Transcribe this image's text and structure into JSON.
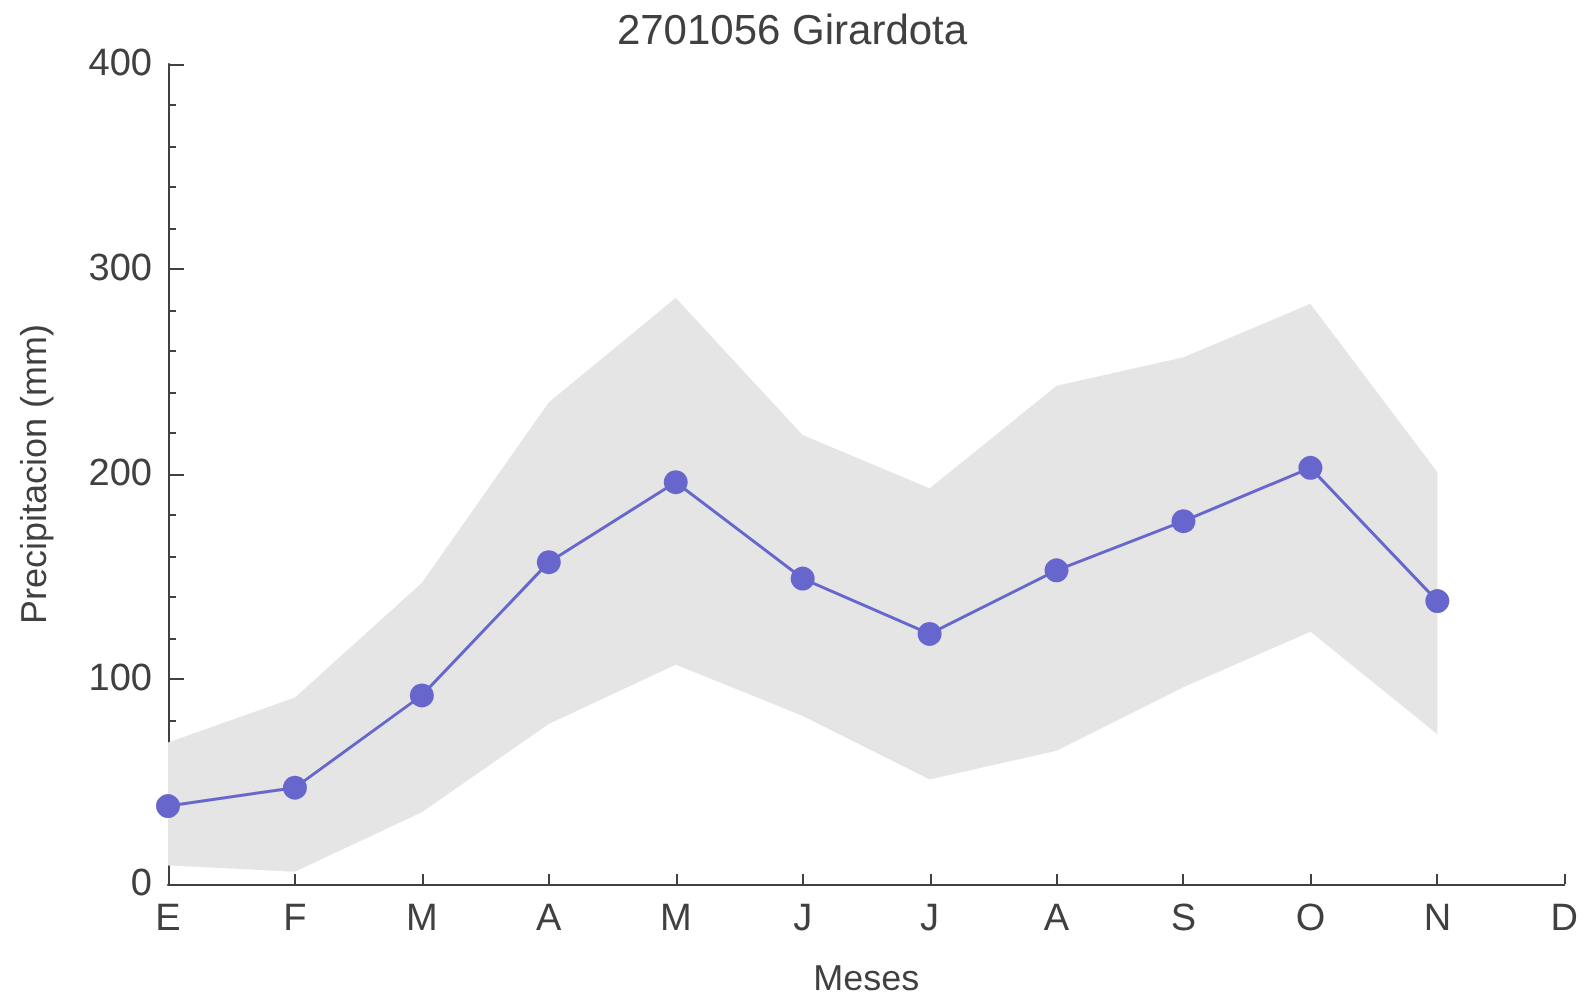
{
  "chart_data": {
    "type": "line",
    "title": "2701056 Girardota",
    "xlabel": "Meses",
    "ylabel": "Precipitacion (mm)",
    "categories": [
      "E",
      "F",
      "M",
      "A",
      "M",
      "J",
      "J",
      "A",
      "S",
      "O",
      "N",
      "D"
    ],
    "series": [
      {
        "color": "#6666cc",
        "values": [
          38,
          47,
          92,
          157,
          196,
          149,
          122,
          153,
          177,
          203,
          138,
          null
        ],
        "lower": [
          9,
          6,
          35,
          78,
          107,
          82,
          51,
          65,
          96,
          123,
          73,
          null
        ],
        "upper": [
          69,
          91,
          147,
          235,
          286,
          219,
          193,
          243,
          257,
          283,
          201,
          null
        ]
      }
    ],
    "ylim": [
      0,
      400
    ],
    "yticks": [
      0,
      100,
      200,
      300,
      400
    ],
    "grid": false,
    "marker": "circle",
    "line_style": "solid"
  }
}
